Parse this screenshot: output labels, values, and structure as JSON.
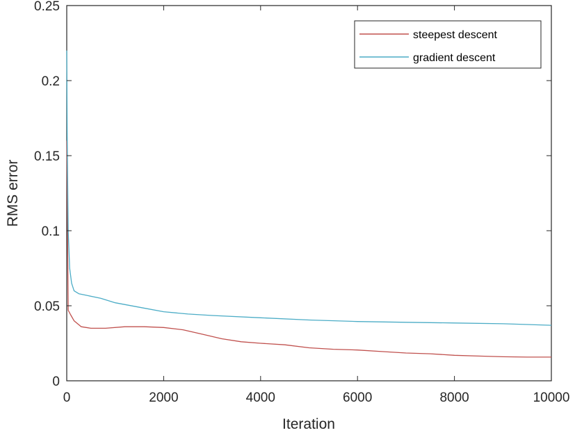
{
  "chart_data": {
    "type": "line",
    "title": "",
    "xlabel": "Iteration",
    "ylabel": "RMS error",
    "xlim": [
      0,
      10000
    ],
    "ylim": [
      0,
      0.25
    ],
    "xticks": [
      0,
      2000,
      4000,
      6000,
      8000,
      10000
    ],
    "yticks": [
      0,
      0.05,
      0.1,
      0.15,
      0.2,
      0.25
    ],
    "xtick_labels": [
      "0",
      "2000",
      "4000",
      "6000",
      "8000",
      "10000"
    ],
    "ytick_labels": [
      "0",
      "0.05",
      "0.1",
      "0.15",
      "0.2",
      "0.25"
    ],
    "grid": false,
    "legend_position": "top-right",
    "series": [
      {
        "name": "steepest descent",
        "color": "#c0504d",
        "x": [
          0,
          30,
          80,
          150,
          300,
          500,
          800,
          1200,
          1600,
          2000,
          2400,
          2800,
          3200,
          3600,
          4000,
          4500,
          5000,
          5500,
          6000,
          6500,
          7000,
          7500,
          8000,
          8500,
          9000,
          9500,
          10000
        ],
        "y": [
          0.16,
          0.047,
          0.044,
          0.04,
          0.036,
          0.035,
          0.035,
          0.036,
          0.036,
          0.0355,
          0.034,
          0.031,
          0.028,
          0.026,
          0.025,
          0.024,
          0.022,
          0.021,
          0.0205,
          0.0195,
          0.0185,
          0.018,
          0.017,
          0.0165,
          0.016,
          0.0158,
          0.0158
        ]
      },
      {
        "name": "gradient descent",
        "color": "#4bacc6",
        "x": [
          0,
          10,
          30,
          60,
          100,
          150,
          250,
          400,
          700,
          1000,
          1500,
          2000,
          2500,
          3000,
          4000,
          5000,
          6000,
          7000,
          8000,
          9000,
          10000
        ],
        "y": [
          0.22,
          0.16,
          0.1,
          0.075,
          0.065,
          0.06,
          0.058,
          0.057,
          0.055,
          0.052,
          0.049,
          0.046,
          0.0445,
          0.0435,
          0.042,
          0.0405,
          0.0395,
          0.039,
          0.0385,
          0.038,
          0.037
        ]
      }
    ]
  }
}
